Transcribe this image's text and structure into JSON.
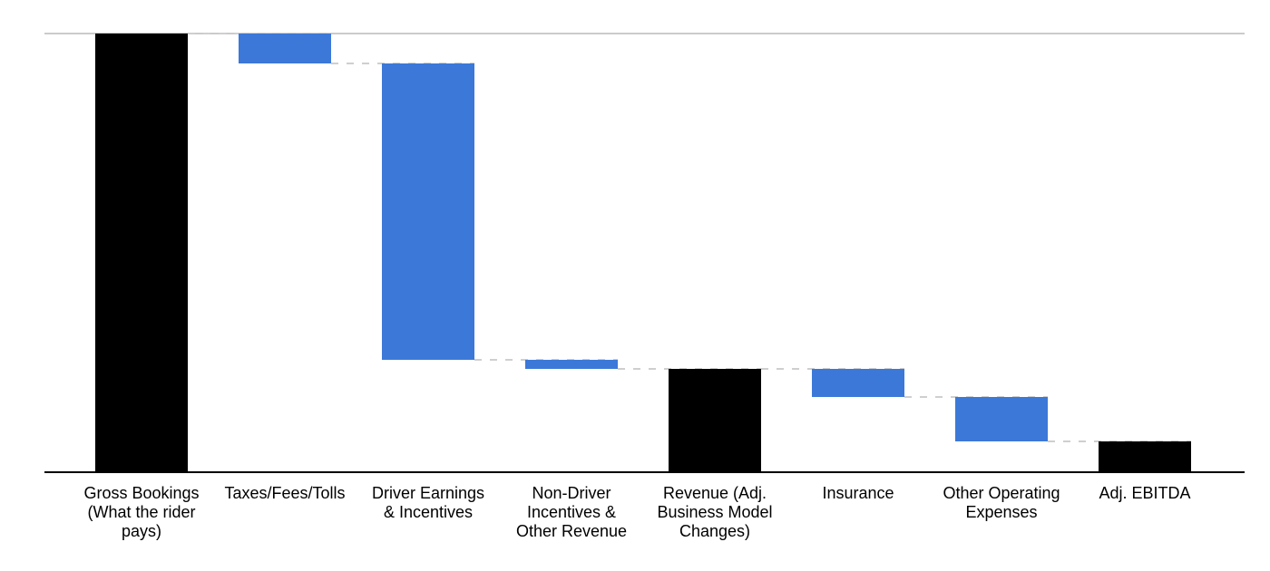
{
  "page": {
    "background_color": "#ffffff",
    "title": ""
  },
  "style": {
    "total_bar_color": "#000000",
    "decrease_bar_color": "#3c78d8",
    "connector_color": "#cfcfcf",
    "gridline_color": "#cbcbcb",
    "axis_color": "#000000",
    "label_color": "#000000"
  },
  "chart_data": {
    "type": "waterfall",
    "title": "",
    "xlabel": "",
    "ylabel": "",
    "ylim": [
      0,
      100
    ],
    "unit": "percent of Gross Bookings (estimated from bar heights; no numeric labels shown)",
    "legend": "none",
    "gridlines": "single horizontal line at top (100% level)",
    "connector_style": "dashed, spans from previous bar right edge across top of next bar",
    "categories": [
      "Gross Bookings (What the rider pays)",
      "Taxes/Fees/Tolls",
      "Driver Earnings & Incentives",
      "Non-Driver Incentives & Other Revenue",
      "Revenue (Adj. Business Model Changes)",
      "Insurance",
      "Other Operating Expenses",
      "Adj. EBITDA"
    ],
    "items": [
      {
        "label": "Gross Bookings (What the rider pays)",
        "label_lines": [
          "Gross Bookings",
          "(What the rider",
          "pays)"
        ],
        "value": 100.0,
        "role": "total",
        "color": "#000000"
      },
      {
        "label": "Taxes/Fees/Tolls",
        "label_lines": [
          "Taxes/Fees/Tolls"
        ],
        "value": -6.8,
        "role": "decrease",
        "color": "#3c78d8"
      },
      {
        "label": "Driver Earnings & Incentives",
        "label_lines": [
          "Driver Earnings",
          "& Incentives"
        ],
        "value": -67.6,
        "role": "decrease",
        "color": "#3c78d8"
      },
      {
        "label": "Non-Driver Incentives & Other Revenue",
        "label_lines": [
          "Non-Driver",
          "Incentives &",
          "Other Revenue"
        ],
        "value": -2.0,
        "role": "decrease",
        "color": "#3c78d8"
      },
      {
        "label": "Revenue (Adj. Business Model Changes)",
        "label_lines": [
          "Revenue (Adj.",
          "Business Model",
          "Changes)"
        ],
        "value": 23.6,
        "role": "subtotal",
        "color": "#000000"
      },
      {
        "label": "Insurance",
        "label_lines": [
          "Insurance"
        ],
        "value": -6.4,
        "role": "decrease",
        "color": "#3c78d8"
      },
      {
        "label": "Other Operating Expenses",
        "label_lines": [
          "Other Operating",
          "Expenses"
        ],
        "value": -10.1,
        "role": "decrease",
        "color": "#3c78d8"
      },
      {
        "label": "Adj. EBITDA",
        "label_lines": [
          "Adj. EBITDA"
        ],
        "value": 7.1,
        "role": "total",
        "color": "#000000"
      }
    ]
  }
}
